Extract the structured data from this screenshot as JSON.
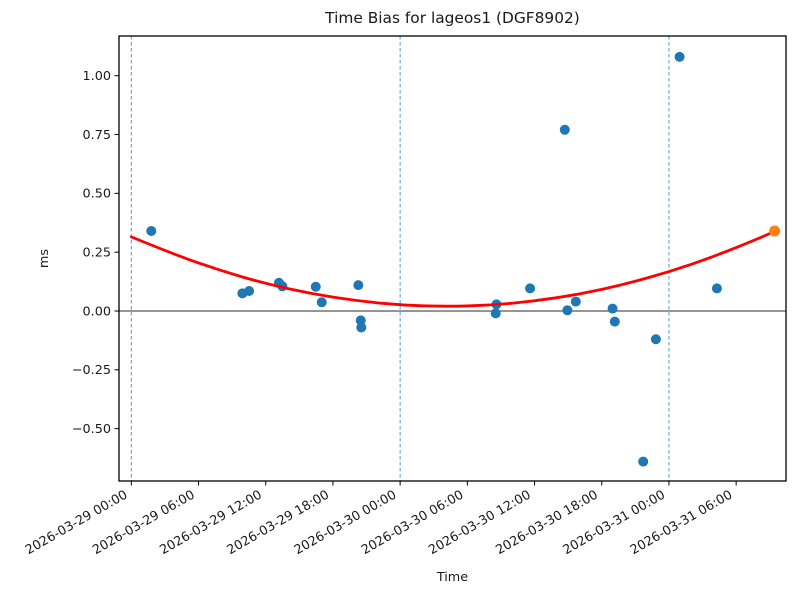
{
  "figure": {
    "background": "#ffffff",
    "text_color": "#1a1a1a"
  },
  "chart_data": {
    "type": "scatter",
    "title": "Time Bias for lageos1 (DGF8902)",
    "xlabel": "Time",
    "ylabel": "ms",
    "time_origin": "2026-03-29 00:00",
    "grid": false,
    "legend": "none",
    "x_tick_hours": [
      0,
      6,
      12,
      18,
      24,
      30,
      36,
      42,
      48,
      54
    ],
    "x_tick_labels": [
      "2026-03-29 00:00",
      "2026-03-29 06:00",
      "2026-03-29 12:00",
      "2026-03-29 18:00",
      "2026-03-30 00:00",
      "2026-03-30 06:00",
      "2026-03-30 12:00",
      "2026-03-30 18:00",
      "2026-03-31 00:00",
      "2026-03-31 06:00"
    ],
    "y_ticks": [
      {
        "label": "1.00",
        "value": 1.0
      },
      {
        "label": "0.75",
        "value": 0.75
      },
      {
        "label": "0.50",
        "value": 0.5
      },
      {
        "label": "0.25",
        "value": 0.25
      },
      {
        "label": "0.00",
        "value": 0.0
      },
      {
        "label": "−0.25",
        "value": -0.25
      },
      {
        "label": "−0.50",
        "value": -0.5
      }
    ],
    "xlim_hours": [
      -1.1,
      58.45
    ],
    "ylim": [
      -0.7225,
      1.1686
    ],
    "day_boundary_lines": {
      "hours": [
        0,
        24,
        48
      ],
      "color": "#5599cc",
      "style": "dashed"
    },
    "zero_line": {
      "value": 0.0,
      "color": "#2b2b2b"
    },
    "series": [
      {
        "name": "time-bias-observations",
        "marker": "circle",
        "color": "#1f77b4",
        "points": [
          [
            "2026-03-29 01:47",
            0.34
          ],
          [
            "2026-03-29 09:55",
            0.075
          ],
          [
            "2026-03-29 10:31",
            0.085
          ],
          [
            "2026-03-29 13:11",
            0.12
          ],
          [
            "2026-03-29 13:29",
            0.105
          ],
          [
            "2026-03-29 16:28",
            0.103
          ],
          [
            "2026-03-29 17:00",
            0.037
          ],
          [
            "2026-03-29 20:16",
            0.11
          ],
          [
            "2026-03-29 20:29",
            -0.04
          ],
          [
            "2026-03-29 20:32",
            -0.07
          ],
          [
            "2026-03-30 08:32",
            -0.01
          ],
          [
            "2026-03-30 08:36",
            0.028
          ],
          [
            "2026-03-30 11:36",
            0.096
          ],
          [
            "2026-03-30 14:42",
            0.77
          ],
          [
            "2026-03-30 14:56",
            0.003
          ],
          [
            "2026-03-30 15:41",
            0.04
          ],
          [
            "2026-03-30 18:58",
            0.01
          ],
          [
            "2026-03-30 19:10",
            -0.045
          ],
          [
            "2026-03-30 21:42",
            -0.64
          ],
          [
            "2026-03-30 22:50",
            -0.12
          ],
          [
            "2026-03-31 00:57",
            1.08
          ],
          [
            "2026-03-31 04:17",
            0.096
          ]
        ]
      },
      {
        "name": "latest-observation",
        "marker": "circle",
        "color": "#ff7f0e",
        "points": [
          [
            "2026-03-31 09:26",
            0.34
          ]
        ]
      }
    ],
    "fit_curve": {
      "name": "polynomial-fit",
      "color": "#ff0000",
      "points_hours_ms": [
        [
          0,
          0.315
        ],
        [
          4,
          0.237
        ],
        [
          8,
          0.171
        ],
        [
          12,
          0.116
        ],
        [
          16,
          0.074
        ],
        [
          20,
          0.044
        ],
        [
          24,
          0.025
        ],
        [
          28,
          0.019
        ],
        [
          32,
          0.024
        ],
        [
          36,
          0.042
        ],
        [
          40,
          0.071
        ],
        [
          44,
          0.113
        ],
        [
          48,
          0.166
        ],
        [
          52,
          0.231
        ],
        [
          56,
          0.308
        ],
        [
          57.5,
          0.34
        ]
      ]
    }
  }
}
